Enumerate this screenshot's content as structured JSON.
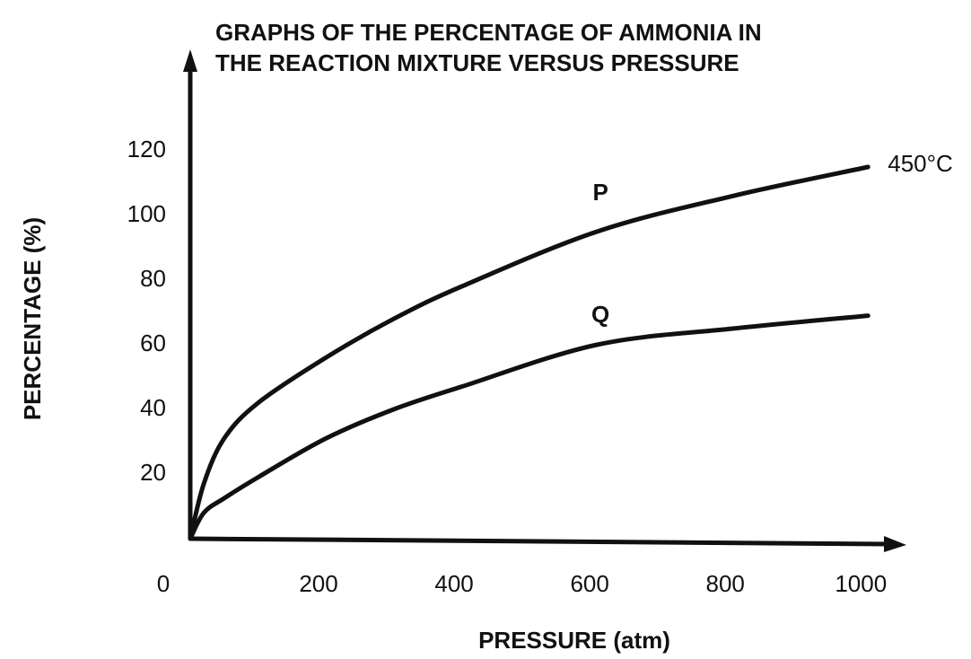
{
  "chart_data": {
    "type": "line",
    "title": [
      "GRAPHS OF THE PERCENTAGE OF AMMONIA IN",
      "THE REACTION MIXTURE VERSUS PRESSURE"
    ],
    "x_label": "PRESSURE (atm)",
    "y_label": "PERCENTAGE (%)",
    "x": [
      0,
      20,
      50,
      100,
      200,
      300,
      400,
      600,
      800,
      1000
    ],
    "series": [
      {
        "name": "P",
        "color": "#111111",
        "values": [
          0,
          17,
          31,
          42,
          56,
          68,
          78,
          95,
          106,
          115
        ]
      },
      {
        "name": "Q",
        "color": "#111111",
        "values": [
          0,
          8,
          12.5,
          19,
          31,
          40,
          47,
          60,
          65,
          69
        ]
      }
    ],
    "annotation": "450°C",
    "xlim": [
      0,
      1050
    ],
    "ylim": [
      0,
      150
    ],
    "xticks": [
      0,
      200,
      400,
      600,
      800,
      1000
    ],
    "yticks": [
      20,
      40,
      60,
      80,
      100,
      120
    ],
    "grid": false
  }
}
